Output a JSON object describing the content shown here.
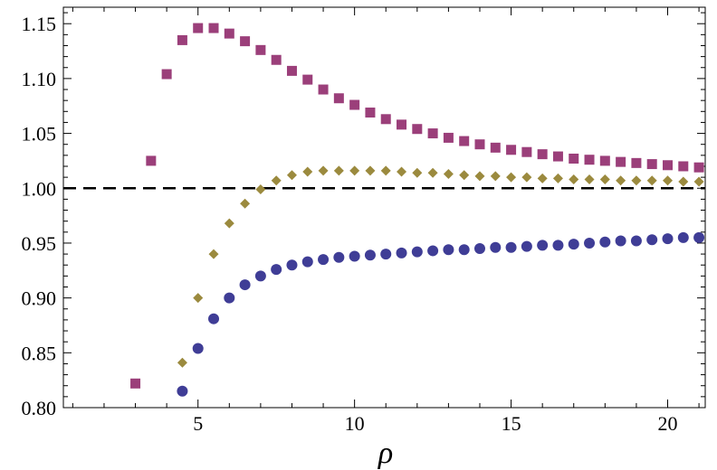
{
  "chart_data": {
    "type": "scatter",
    "title": "",
    "xlabel": "ρ",
    "ylabel": "",
    "xlim": [
      0.7,
      21.2
    ],
    "ylim": [
      0.8,
      1.165
    ],
    "xticks": [
      5,
      10,
      15,
      20
    ],
    "xtick_labels": [
      "5",
      "10",
      "15",
      "20"
    ],
    "yticks": [
      0.8,
      0.85,
      0.9,
      0.95,
      1.0,
      1.05,
      1.1,
      1.15
    ],
    "ytick_labels": [
      "0.80",
      "0.85",
      "0.90",
      "0.95",
      "1.00",
      "1.05",
      "1.10",
      "1.15"
    ],
    "grid": false,
    "reference_line": {
      "y": 1.0,
      "style": "dashed",
      "color": "#000000"
    },
    "series": [
      {
        "marker": "square",
        "color": "#9b3f7a",
        "x": [
          3,
          3.5,
          4,
          4.5,
          5,
          5.5,
          6,
          6.5,
          7,
          7.5,
          8,
          8.5,
          9,
          9.5,
          10,
          10.5,
          11,
          11.5,
          12,
          12.5,
          13,
          13.5,
          14,
          14.5,
          15,
          15.5,
          16,
          16.5,
          17,
          17.5,
          18,
          18.5,
          19,
          19.5,
          20,
          20.5,
          21
        ],
        "y": [
          0.822,
          1.025,
          1.104,
          1.135,
          1.146,
          1.146,
          1.141,
          1.134,
          1.126,
          1.117,
          1.107,
          1.099,
          1.09,
          1.082,
          1.076,
          1.069,
          1.063,
          1.058,
          1.054,
          1.05,
          1.046,
          1.043,
          1.04,
          1.037,
          1.035,
          1.033,
          1.031,
          1.029,
          1.027,
          1.026,
          1.025,
          1.024,
          1.023,
          1.022,
          1.021,
          1.02,
          1.019
        ]
      },
      {
        "marker": "diamond",
        "color": "#9b8a3e",
        "x": [
          4.5,
          5,
          5.5,
          6,
          6.5,
          7,
          7.5,
          8,
          8.5,
          9,
          9.5,
          10,
          10.5,
          11,
          11.5,
          12,
          12.5,
          13,
          13.5,
          14,
          14.5,
          15,
          15.5,
          16,
          16.5,
          17,
          17.5,
          18,
          18.5,
          19,
          19.5,
          20,
          20.5,
          21
        ],
        "y": [
          0.841,
          0.9,
          0.94,
          0.968,
          0.986,
          0.999,
          1.007,
          1.012,
          1.015,
          1.016,
          1.016,
          1.016,
          1.016,
          1.016,
          1.015,
          1.014,
          1.014,
          1.013,
          1.012,
          1.011,
          1.011,
          1.01,
          1.01,
          1.009,
          1.009,
          1.008,
          1.008,
          1.008,
          1.007,
          1.007,
          1.007,
          1.007,
          1.006,
          1.006
        ]
      },
      {
        "marker": "circle",
        "color": "#3f3d96",
        "x": [
          4.5,
          5,
          5.5,
          6,
          6.5,
          7,
          7.5,
          8,
          8.5,
          9,
          9.5,
          10,
          10.5,
          11,
          11.5,
          12,
          12.5,
          13,
          13.5,
          14,
          14.5,
          15,
          15.5,
          16,
          16.5,
          17,
          17.5,
          18,
          18.5,
          19,
          19.5,
          20,
          20.5,
          21
        ],
        "y": [
          0.815,
          0.854,
          0.881,
          0.9,
          0.912,
          0.92,
          0.926,
          0.93,
          0.933,
          0.935,
          0.937,
          0.938,
          0.939,
          0.94,
          0.941,
          0.942,
          0.943,
          0.944,
          0.944,
          0.945,
          0.946,
          0.946,
          0.947,
          0.948,
          0.948,
          0.949,
          0.95,
          0.951,
          0.952,
          0.952,
          0.953,
          0.954,
          0.955,
          0.955
        ]
      }
    ]
  }
}
